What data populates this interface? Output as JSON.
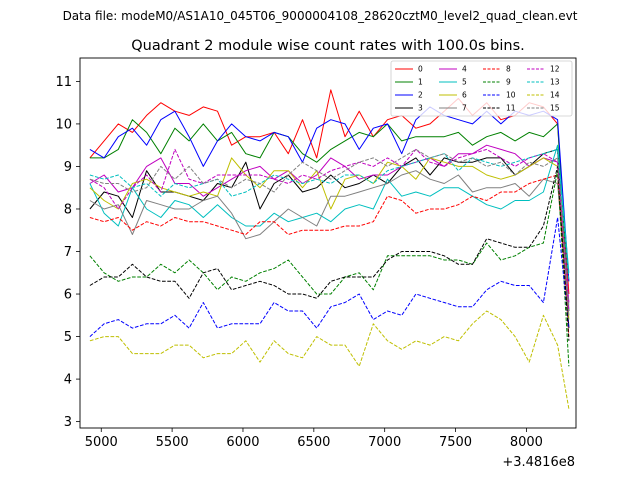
{
  "chart_data": {
    "type": "line",
    "suptitle": "Data file: modeM0/AS1A10_045T06_9000004108_28620cztM0_level2_quad_clean.evt",
    "title": "Quadrant 2 module wise count rates with 100.0s bins.",
    "xlabel": "",
    "ylabel": "",
    "x_offset_label": "+3.4816e8",
    "xlim": [
      4850,
      8350
    ],
    "ylim": [
      2.85,
      11.55
    ],
    "xticks": [
      "5000",
      "5500",
      "6000",
      "6500",
      "7000",
      "7500",
      "8000"
    ],
    "xtick_values": [
      5000,
      5500,
      6000,
      6500,
      7000,
      7500,
      8000
    ],
    "yticks": [
      "3",
      "4",
      "5",
      "6",
      "7",
      "8",
      "9",
      "10",
      "11"
    ],
    "ytick_values": [
      3,
      4,
      5,
      6,
      7,
      8,
      9,
      10,
      11
    ],
    "grid": false,
    "legend_position": "top-right",
    "x": [
      4920,
      5020,
      5120,
      5220,
      5320,
      5420,
      5520,
      5620,
      5720,
      5820,
      5920,
      6020,
      6120,
      6220,
      6320,
      6420,
      6520,
      6620,
      6720,
      6820,
      6920,
      7020,
      7120,
      7220,
      7320,
      7420,
      7520,
      7620,
      7720,
      7820,
      7920,
      8020,
      8120,
      8220,
      8300
    ],
    "series": [
      {
        "name": "0",
        "color": "#ff0000",
        "dash": "solid",
        "values": [
          9.2,
          9.6,
          10.0,
          9.8,
          10.2,
          10.5,
          10.3,
          10.2,
          10.4,
          10.3,
          9.5,
          9.7,
          9.7,
          9.8,
          9.3,
          10.1,
          9.2,
          10.8,
          9.7,
          10.3,
          9.7,
          10.1,
          10.2,
          9.9,
          10.0,
          10.3,
          10.6,
          10.2,
          10.5,
          10.1,
          10.2,
          10.5,
          10.4,
          10.0,
          6.0
        ]
      },
      {
        "name": "1",
        "color": "#008000",
        "dash": "solid",
        "values": [
          9.2,
          9.2,
          9.4,
          10.1,
          9.8,
          9.3,
          9.9,
          9.6,
          10.0,
          9.6,
          9.8,
          9.3,
          9.2,
          9.8,
          9.7,
          9.3,
          9.1,
          9.4,
          9.6,
          9.8,
          9.7,
          10.0,
          9.6,
          9.7,
          9.7,
          9.7,
          9.8,
          9.5,
          9.7,
          9.8,
          9.6,
          9.8,
          9.7,
          10.0,
          5.6
        ]
      },
      {
        "name": "2",
        "color": "#0000ff",
        "dash": "solid",
        "values": [
          9.4,
          9.2,
          9.7,
          9.9,
          9.5,
          10.1,
          10.3,
          9.7,
          9.0,
          9.6,
          10.0,
          9.7,
          9.6,
          9.8,
          9.7,
          9.1,
          9.9,
          10.1,
          10.0,
          9.4,
          9.9,
          10.0,
          9.3,
          10.1,
          10.4,
          10.2,
          10.1,
          10.0,
          10.3,
          10.0,
          10.3,
          10.2,
          10.3,
          10.1,
          6.3
        ]
      },
      {
        "name": "3",
        "color": "#000000",
        "dash": "solid",
        "values": [
          8.0,
          8.4,
          8.3,
          7.8,
          8.9,
          8.4,
          8.4,
          8.3,
          8.2,
          8.6,
          8.5,
          9.1,
          8.0,
          8.6,
          8.8,
          8.4,
          8.5,
          8.8,
          8.5,
          8.6,
          8.8,
          8.6,
          9.0,
          9.2,
          8.8,
          9.2,
          9.1,
          9.1,
          9.2,
          9.2,
          8.8,
          9.0,
          9.3,
          9.4,
          5.2
        ]
      },
      {
        "name": "4",
        "color": "#c000c0",
        "dash": "solid",
        "values": [
          8.6,
          8.8,
          8.4,
          8.5,
          9.0,
          9.2,
          8.6,
          8.6,
          8.3,
          8.5,
          8.7,
          8.9,
          9.0,
          8.7,
          8.9,
          8.6,
          8.8,
          9.2,
          9.0,
          8.7,
          8.8,
          8.8,
          9.0,
          9.1,
          9.2,
          9.0,
          9.3,
          9.3,
          9.5,
          9.4,
          9.3,
          9.0,
          9.2,
          9.1,
          5.8
        ]
      },
      {
        "name": "5",
        "color": "#00bfbf",
        "dash": "solid",
        "values": [
          8.6,
          7.9,
          7.6,
          8.5,
          8.0,
          7.8,
          8.2,
          8.1,
          7.8,
          8.1,
          7.8,
          7.6,
          7.6,
          7.9,
          7.7,
          7.8,
          7.9,
          7.7,
          8.0,
          8.1,
          8.0,
          8.7,
          8.3,
          8.4,
          8.3,
          8.5,
          8.5,
          8.3,
          8.1,
          8.0,
          8.2,
          8.2,
          8.4,
          9.5,
          6.5
        ]
      },
      {
        "name": "6",
        "color": "#bfbf00",
        "dash": "solid",
        "values": [
          8.5,
          8.2,
          8.0,
          8.6,
          8.7,
          8.5,
          8.4,
          8.3,
          8.4,
          8.3,
          9.2,
          8.8,
          8.5,
          8.9,
          8.9,
          8.5,
          8.9,
          8.0,
          8.7,
          8.8,
          8.6,
          9.1,
          9.0,
          8.7,
          9.2,
          9.1,
          9.0,
          9.0,
          8.8,
          8.7,
          8.8,
          9.0,
          9.2,
          9.0,
          5.4
        ]
      },
      {
        "name": "7",
        "color": "#808080",
        "dash": "solid",
        "values": [
          8.2,
          8.0,
          8.1,
          7.4,
          8.2,
          8.1,
          8.0,
          8.0,
          8.2,
          8.3,
          7.9,
          7.3,
          7.4,
          7.7,
          8.0,
          7.8,
          7.6,
          8.3,
          8.3,
          8.4,
          8.5,
          8.6,
          8.8,
          8.9,
          8.7,
          8.6,
          8.8,
          8.4,
          8.5,
          8.5,
          8.6,
          8.3,
          8.7,
          8.6,
          5.5
        ]
      },
      {
        "name": "8",
        "color": "#ff0000",
        "dash": "dashed",
        "values": [
          7.8,
          7.7,
          7.8,
          7.5,
          7.7,
          7.6,
          7.8,
          7.7,
          7.7,
          7.6,
          7.5,
          7.4,
          7.7,
          7.7,
          7.4,
          7.5,
          7.5,
          7.5,
          7.6,
          7.6,
          7.7,
          8.3,
          8.2,
          7.9,
          8.0,
          8.0,
          8.1,
          8.3,
          8.2,
          8.4,
          8.4,
          8.6,
          8.7,
          8.8,
          5.0
        ]
      },
      {
        "name": "9",
        "color": "#008000",
        "dash": "dashed",
        "values": [
          6.9,
          6.5,
          6.3,
          6.4,
          6.4,
          6.7,
          6.5,
          6.8,
          6.5,
          6.1,
          6.4,
          6.3,
          6.5,
          6.6,
          6.8,
          6.4,
          6.0,
          6.0,
          6.4,
          6.5,
          6.1,
          6.9,
          6.9,
          6.9,
          6.9,
          6.8,
          6.8,
          6.7,
          7.2,
          6.8,
          6.9,
          7.1,
          7.2,
          8.9,
          4.3
        ]
      },
      {
        "name": "10",
        "color": "#0000ff",
        "dash": "dashed",
        "values": [
          5.0,
          5.3,
          5.4,
          5.2,
          5.3,
          5.3,
          5.5,
          5.2,
          5.8,
          5.2,
          5.3,
          5.3,
          5.3,
          5.8,
          5.6,
          5.6,
          5.2,
          5.7,
          5.8,
          6.0,
          5.4,
          5.6,
          5.5,
          6.0,
          5.9,
          5.8,
          5.7,
          5.7,
          6.1,
          6.3,
          6.2,
          6.2,
          5.8,
          7.8,
          5.2
        ]
      },
      {
        "name": "11",
        "color": "#000000",
        "dash": "dashed",
        "values": [
          6.2,
          6.4,
          6.4,
          6.7,
          6.4,
          6.3,
          6.3,
          5.9,
          6.5,
          6.6,
          6.1,
          6.2,
          6.3,
          6.2,
          6.0,
          6.0,
          5.9,
          6.3,
          6.4,
          6.4,
          6.4,
          6.8,
          7.0,
          7.0,
          7.0,
          6.9,
          6.7,
          6.7,
          7.3,
          7.2,
          7.1,
          7.1,
          7.6,
          9.0,
          4.9
        ]
      },
      {
        "name": "12",
        "color": "#c000c0",
        "dash": "dashed",
        "values": [
          8.7,
          8.5,
          8.0,
          8.5,
          8.8,
          8.4,
          9.4,
          8.7,
          8.6,
          8.8,
          8.8,
          8.8,
          8.8,
          8.7,
          8.6,
          8.8,
          8.7,
          8.9,
          9.0,
          9.1,
          9.0,
          9.2,
          9.0,
          9.4,
          9.1,
          9.0,
          9.2,
          9.3,
          9.4,
          9.2,
          9.0,
          9.2,
          9.3,
          9.1,
          5.6
        ]
      },
      {
        "name": "13",
        "color": "#00bfbf",
        "dash": "dashed",
        "values": [
          8.8,
          8.7,
          8.8,
          8.5,
          8.6,
          8.3,
          8.6,
          8.5,
          8.6,
          8.7,
          8.3,
          8.4,
          8.6,
          8.8,
          8.7,
          8.6,
          8.7,
          8.6,
          8.8,
          8.8,
          8.6,
          8.9,
          9.0,
          9.1,
          9.2,
          9.3,
          8.9,
          9.2,
          9.1,
          9.0,
          9.1,
          9.2,
          9.3,
          9.4,
          6.3
        ]
      },
      {
        "name": "14",
        "color": "#bfbf00",
        "dash": "dashed",
        "values": [
          4.9,
          5.0,
          5.0,
          4.6,
          4.6,
          4.6,
          4.8,
          4.8,
          4.5,
          4.6,
          4.6,
          4.9,
          4.4,
          4.9,
          4.6,
          4.5,
          5.0,
          4.8,
          4.8,
          4.3,
          5.3,
          4.9,
          4.7,
          4.9,
          4.8,
          5.0,
          4.9,
          5.3,
          5.6,
          5.4,
          5.0,
          4.4,
          5.5,
          4.8,
          3.3
        ]
      },
      {
        "name": "15",
        "color": "#808080",
        "dash": "dashed",
        "values": [
          8.7,
          8.6,
          8.6,
          8.4,
          8.5,
          9.0,
          8.7,
          9.0,
          8.6,
          8.7,
          8.5,
          8.7,
          8.6,
          8.4,
          8.8,
          9.1,
          8.9,
          8.7,
          8.9,
          9.1,
          9.2,
          9.0,
          9.2,
          9.4,
          9.2,
          9.3,
          9.1,
          9.2,
          9.0,
          9.1,
          8.8,
          9.1,
          9.0,
          9.2,
          5.7
        ]
      }
    ]
  }
}
